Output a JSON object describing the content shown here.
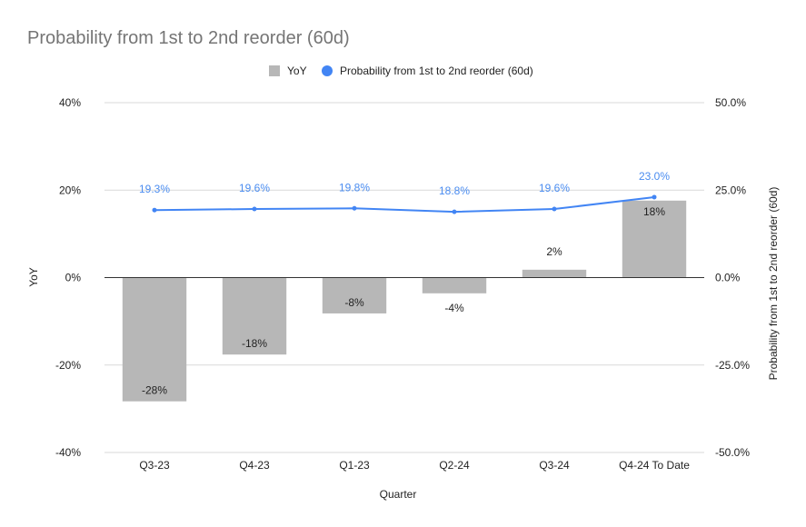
{
  "chart_data": {
    "type": "bar",
    "title": "Probability from 1st to 2nd reorder (60d)",
    "xlabel": "Quarter",
    "ylabel": "YoY",
    "ylabel_right": "Probability from 1st to 2nd reorder (60d)",
    "categories": [
      "Q3-23",
      "Q4-23",
      "Q1-23",
      "Q2-24",
      "Q3-24",
      "Q4-24 To Date"
    ],
    "ylim": [
      -40,
      40
    ],
    "yticks": [
      "40%",
      "20%",
      "0%",
      "-20%",
      "-40%"
    ],
    "ylim_right": [
      -50,
      50
    ],
    "yticks_right": [
      "50.0%",
      "25.0%",
      "0.0%",
      "-25.0%",
      "-50.0%"
    ],
    "grid": true,
    "legend_position": "top",
    "series": [
      {
        "name": "YoY",
        "type": "bar",
        "axis": "left",
        "color": "#b7b7b7",
        "values": [
          -28.3,
          -17.6,
          -8.2,
          -3.6,
          1.8,
          17.6
        ],
        "labels": [
          "-28%",
          "-18%",
          "-8%",
          "-4%",
          "2%",
          "18%"
        ]
      },
      {
        "name": "Probability from 1st to 2nd reorder (60d)",
        "type": "line",
        "axis": "right",
        "color": "#4285f4",
        "values": [
          19.3,
          19.6,
          19.8,
          18.8,
          19.6,
          23.0
        ],
        "labels": [
          "19.3%",
          "19.6%",
          "19.8%",
          "18.8%",
          "19.6%",
          "23.0%"
        ]
      }
    ]
  }
}
